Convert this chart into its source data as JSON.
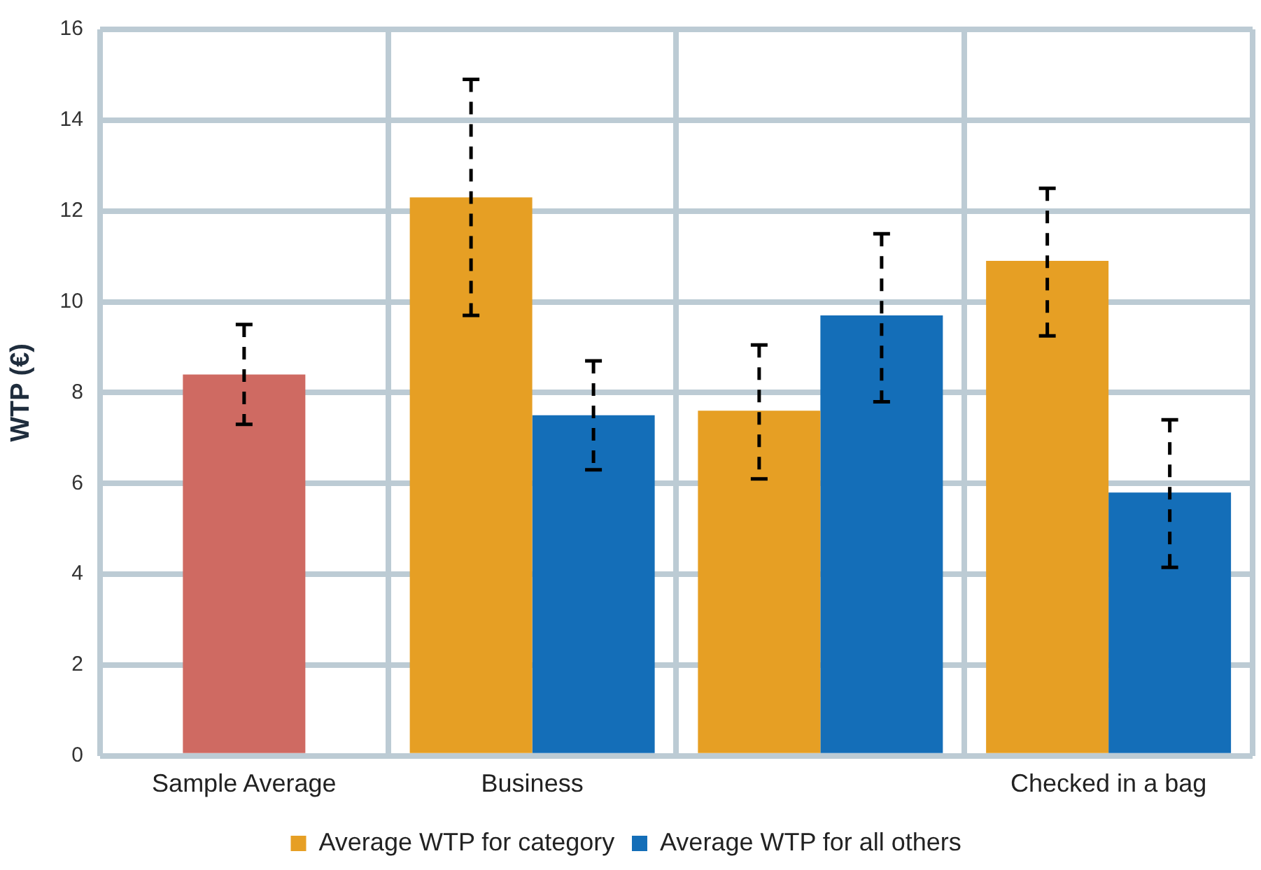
{
  "chart_data": {
    "type": "bar",
    "ylabel": "WTP (€)",
    "categories": [
      "Sample Average",
      "Business",
      null,
      "Checked in a bag"
    ],
    "series": [
      {
        "color": "#cf6a62",
        "values": [
          8.4,
          null,
          null,
          null
        ],
        "errors": [
          [
            7.3,
            9.5
          ],
          null,
          null,
          null
        ]
      },
      {
        "name": "Average WTP for category",
        "color": "#e69f24",
        "values": [
          null,
          12.3,
          7.6,
          10.9
        ],
        "errors": [
          null,
          [
            9.7,
            14.9
          ],
          [
            6.1,
            9.05
          ],
          [
            9.25,
            12.5
          ]
        ]
      },
      {
        "name": "Average WTP for all others",
        "color": "#146eb8",
        "values": [
          null,
          7.5,
          9.7,
          5.8
        ],
        "errors": [
          null,
          [
            6.3,
            8.7
          ],
          [
            7.8,
            11.5
          ],
          [
            4.15,
            7.4
          ]
        ]
      }
    ],
    "ylim": [
      0,
      16
    ],
    "yticks": [
      0,
      2,
      4,
      6,
      8,
      10,
      12,
      14,
      16
    ],
    "grid": true,
    "legend": "bottom"
  }
}
